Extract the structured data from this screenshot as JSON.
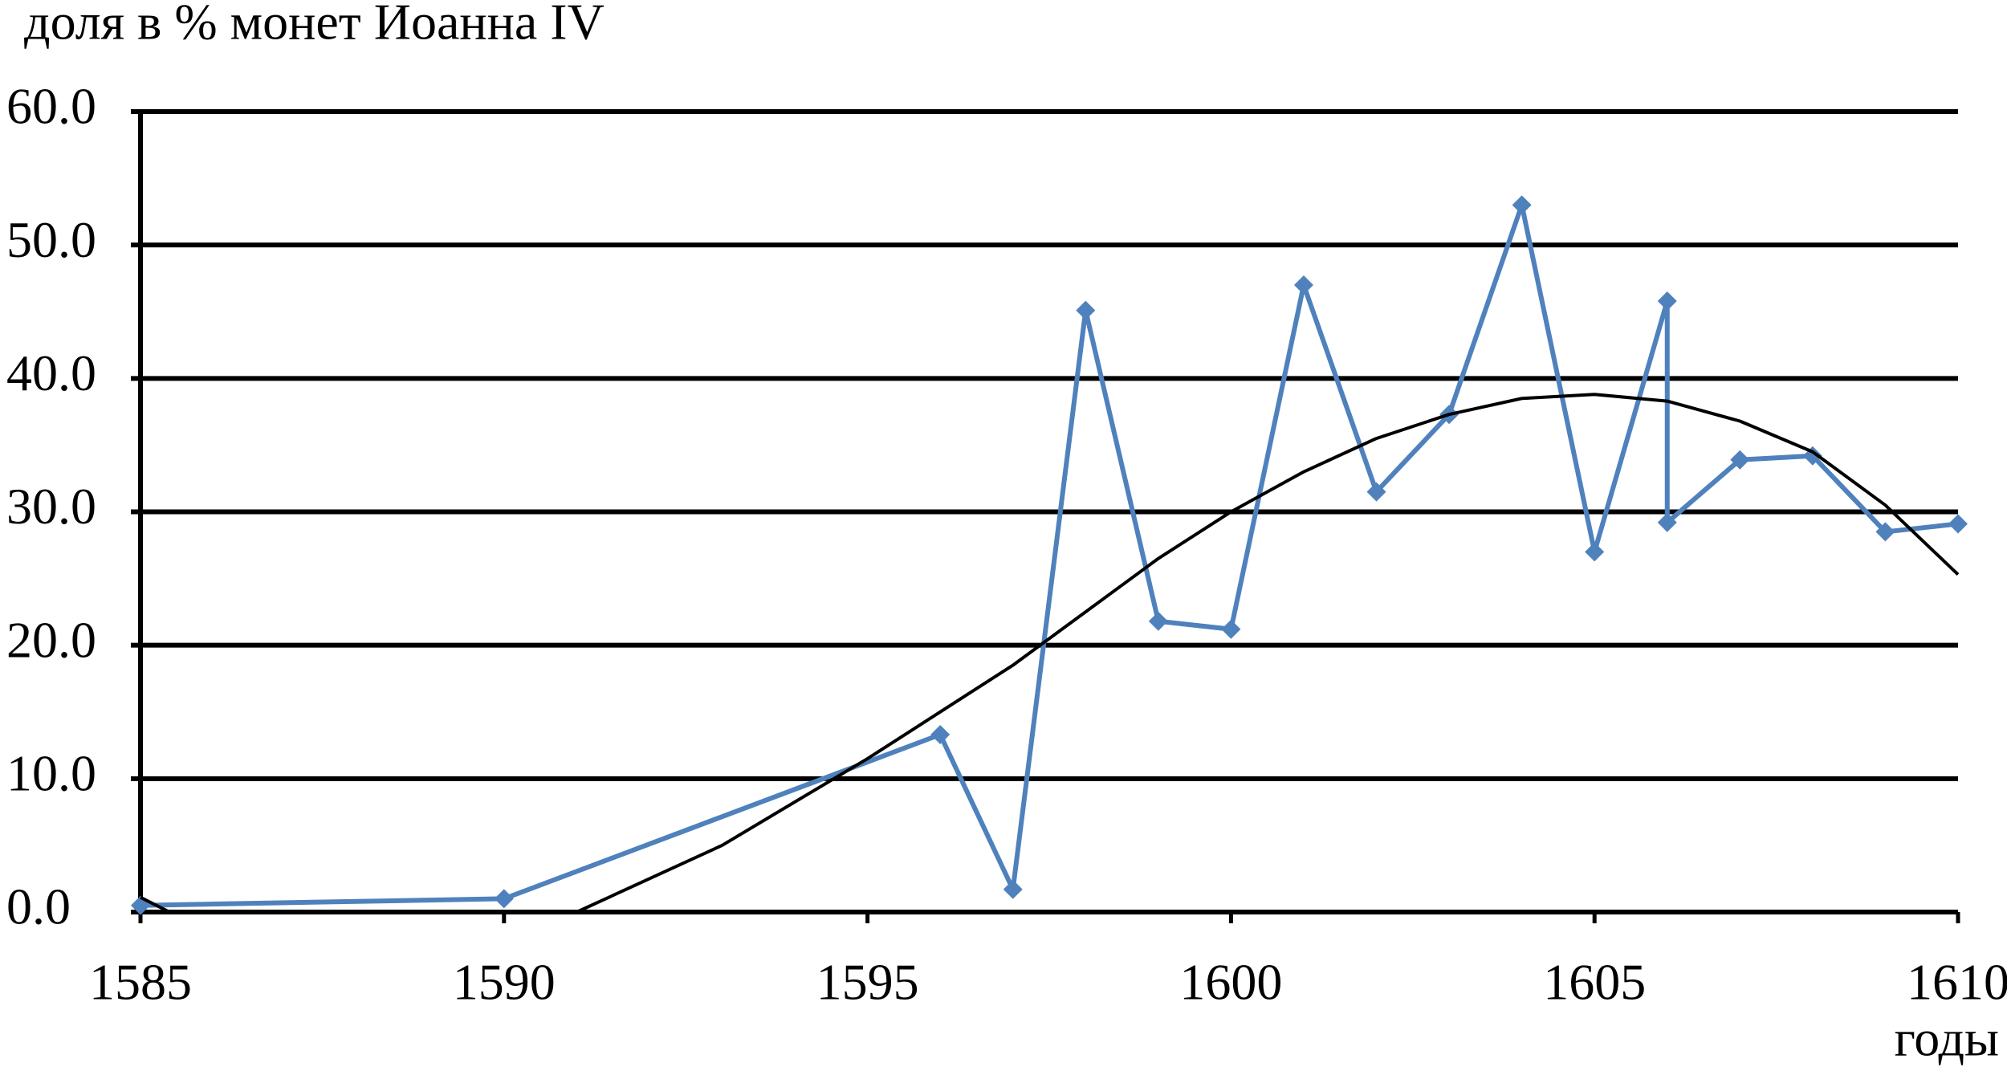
{
  "chart_data": {
    "type": "line",
    "title": "доля в % монет Иоанна IV",
    "x_label": "годы",
    "xlim": [
      1585,
      1610
    ],
    "xticks": [
      1585,
      1590,
      1595,
      1600,
      1605,
      1610
    ],
    "ylim": [
      0,
      60
    ],
    "yticks": [
      {
        "value": 0,
        "label": "0.0"
      },
      {
        "value": 10,
        "label": "10.0"
      },
      {
        "value": 20,
        "label": "20.0"
      },
      {
        "value": 30,
        "label": "30.0"
      },
      {
        "value": 40,
        "label": "40.0"
      },
      {
        "value": 50,
        "label": "50.0"
      },
      {
        "value": 60,
        "label": "60.0"
      }
    ],
    "grid": true,
    "series": [
      {
        "color": "#4f81bd",
        "markers": true,
        "x": [
          1585,
          1590,
          1596,
          1597,
          1598,
          1599,
          1600,
          1601,
          1602,
          1603,
          1604,
          1605,
          1606,
          1606,
          1607,
          1608,
          1609,
          1610
        ],
        "values": [
          0.5,
          1.0,
          13.3,
          1.7,
          45.1,
          21.8,
          21.2,
          47.0,
          31.5,
          37.3,
          53.0,
          27.0,
          45.8,
          29.2,
          33.9,
          34.2,
          28.5,
          29.1
        ]
      },
      {
        "color": "#000000",
        "markers": false,
        "x": [
          1585,
          1585.4,
          1588,
          1591,
          1593,
          1595,
          1597,
          1599,
          1600,
          1601,
          1602,
          1603,
          1604,
          1605,
          1606,
          1607,
          1608,
          1609,
          1610
        ],
        "values": [
          1.1,
          0,
          null,
          0,
          5,
          11.5,
          18.5,
          26.5,
          30,
          33,
          35.5,
          37.3,
          38.5,
          38.8,
          38.3,
          36.8,
          34.5,
          30.5,
          25.3
        ]
      }
    ]
  }
}
